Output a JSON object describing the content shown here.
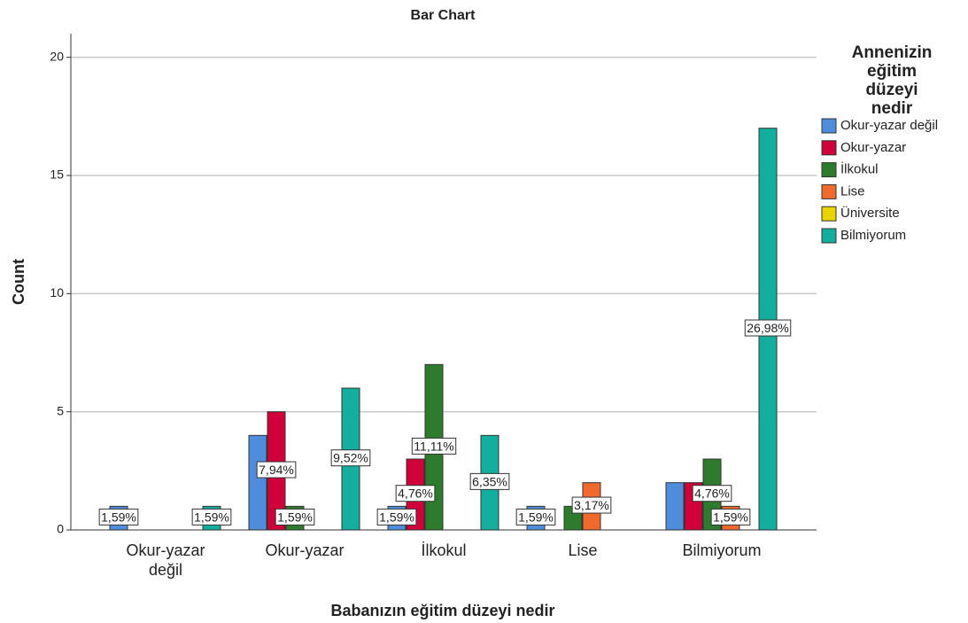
{
  "chart_data": {
    "type": "bar",
    "title": "Bar Chart",
    "x_label": "Babanızın eğitim düzeyi nedir",
    "y_label": "Count",
    "legend_title": "Annenizin eğitim düzeyi nedir",
    "categories": [
      "Okur-yazar değil",
      "Okur-yazar",
      "İlkokul",
      "Lise",
      "Bilmiyorum"
    ],
    "series": [
      {
        "name": "Okur-yazar değil",
        "color": "#4f8ddc",
        "values": [
          1,
          4,
          1,
          1,
          2
        ],
        "value_labels": [
          "1,59%",
          null,
          "1,59%",
          "1,59%",
          null
        ]
      },
      {
        "name": "Okur-yazar",
        "color": "#d0003a",
        "values": [
          0,
          5,
          3,
          0,
          2
        ],
        "value_labels": [
          null,
          "7,94%",
          "4,76%",
          null,
          null
        ]
      },
      {
        "name": "İlkokul",
        "color": "#2e7b2e",
        "values": [
          0,
          1,
          7,
          1,
          3
        ],
        "value_labels": [
          null,
          "1,59%",
          "11,11%",
          null,
          "4,76%"
        ]
      },
      {
        "name": "Lise",
        "color": "#f06a2e",
        "values": [
          0,
          0,
          0,
          2,
          1
        ],
        "value_labels": [
          null,
          null,
          null,
          "3,17%",
          "1,59%"
        ]
      },
      {
        "name": "Üniversite",
        "color": "#e8d400",
        "values": [
          0,
          0,
          0,
          0,
          0
        ],
        "value_labels": [
          null,
          null,
          null,
          null,
          null
        ]
      },
      {
        "name": "Bilmiyorum",
        "color": "#14ae9e",
        "values": [
          1,
          6,
          4,
          0,
          17
        ],
        "value_labels": [
          "1,59%",
          "9,52%",
          "6,35%",
          null,
          "26,98%"
        ]
      }
    ],
    "ylim": [
      0,
      21
    ],
    "yticks": [
      0,
      5,
      10,
      15,
      20
    ],
    "grid": true,
    "legend": "right"
  }
}
